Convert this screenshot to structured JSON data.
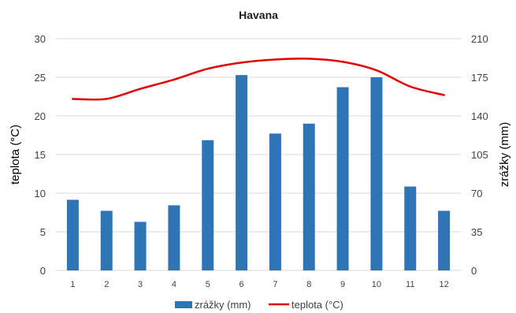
{
  "chart_data": {
    "type": "bar",
    "title": "Havana",
    "categories": [
      "1",
      "2",
      "3",
      "4",
      "5",
      "6",
      "7",
      "8",
      "9",
      "10",
      "11",
      "12"
    ],
    "series": [
      {
        "name": "zrážky (mm)",
        "type": "bar",
        "axis": "right",
        "color": "#2e75b6",
        "values": [
          64,
          54,
          44,
          59,
          118,
          177,
          124,
          133,
          166,
          175,
          76,
          54
        ]
      },
      {
        "name": "teplota (°C)",
        "type": "line",
        "axis": "left",
        "color": "#e00000",
        "values": [
          22.2,
          22.2,
          23.5,
          24.7,
          26.1,
          26.9,
          27.3,
          27.4,
          27.0,
          25.9,
          23.8,
          22.7
        ]
      }
    ],
    "ylabel": "teplota (°C)",
    "ylabel_right": "zrážky (mm)",
    "ylim": [
      0,
      30
    ],
    "ylim_right": [
      0,
      210
    ],
    "yticks": [
      "0",
      "5",
      "10",
      "15",
      "20",
      "25",
      "30"
    ],
    "yticks_right": [
      "0",
      "35",
      "70",
      "105",
      "140",
      "175",
      "210"
    ],
    "grid": true,
    "legend_position": "bottom"
  }
}
